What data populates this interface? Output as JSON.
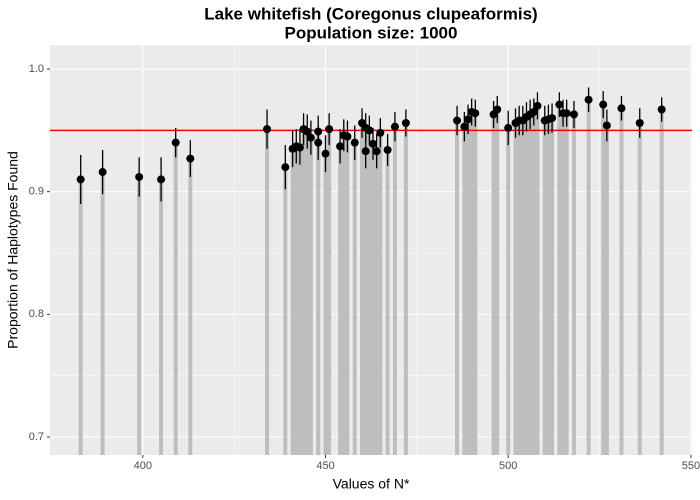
{
  "chart_data": {
    "type": "errorbar-point",
    "title": "Lake whitefish (Coregonus clupeaformis)",
    "subtitle": "Population size: 1000",
    "x_label": "Values of N*",
    "y_label": "Proportion of Haplotypes Found",
    "x": [
      383,
      389,
      399,
      405,
      409,
      413,
      434,
      439,
      441,
      442,
      443,
      444,
      445,
      446,
      448,
      448,
      450,
      451,
      454,
      455,
      456,
      458,
      460,
      461,
      461,
      462,
      463,
      464,
      465,
      467,
      469,
      472,
      486,
      488,
      489,
      490,
      491,
      496,
      497,
      500,
      502,
      503,
      504,
      505,
      506,
      507,
      508,
      510,
      511,
      512,
      514,
      515,
      516,
      518,
      522,
      526,
      527,
      531,
      536,
      542
    ],
    "values": [
      0.91,
      0.916,
      0.912,
      0.91,
      0.94,
      0.927,
      0.951,
      0.92,
      0.935,
      0.937,
      0.936,
      0.951,
      0.949,
      0.944,
      0.949,
      0.94,
      0.931,
      0.951,
      0.937,
      0.946,
      0.945,
      0.94,
      0.956,
      0.952,
      0.933,
      0.95,
      0.939,
      0.933,
      0.948,
      0.934,
      0.953,
      0.956,
      0.958,
      0.953,
      0.959,
      0.965,
      0.964,
      0.963,
      0.967,
      0.952,
      0.956,
      0.958,
      0.958,
      0.961,
      0.963,
      0.965,
      0.97,
      0.958,
      0.959,
      0.96,
      0.971,
      0.964,
      0.964,
      0.963,
      0.975,
      0.971,
      0.954,
      0.968,
      0.956,
      0.967
    ],
    "errors": [
      0.02,
      0.018,
      0.016,
      0.018,
      0.012,
      0.015,
      0.016,
      0.018,
      0.015,
      0.014,
      0.014,
      0.013,
      0.014,
      0.014,
      0.013,
      0.014,
      0.015,
      0.013,
      0.014,
      0.013,
      0.013,
      0.014,
      0.012,
      0.012,
      0.014,
      0.012,
      0.013,
      0.014,
      0.012,
      0.013,
      0.012,
      0.011,
      0.012,
      0.012,
      0.012,
      0.011,
      0.011,
      0.011,
      0.011,
      0.014,
      0.012,
      0.012,
      0.012,
      0.012,
      0.012,
      0.011,
      0.011,
      0.012,
      0.012,
      0.012,
      0.01,
      0.011,
      0.011,
      0.011,
      0.01,
      0.011,
      0.013,
      0.01,
      0.012,
      0.01
    ],
    "bar_color": "#bebebe",
    "point_color": "#000000",
    "hline": 0.95,
    "hline_color": "#ff0000",
    "xlim": [
      374.6,
      550.3
    ],
    "ylim": [
      0.6853,
      1.0196
    ],
    "xticks": [
      400,
      450,
      500,
      550
    ],
    "yticks": [
      0.7,
      0.8,
      0.9,
      {
        "value": 1.0,
        "label": "1.0"
      }
    ],
    "x_minor_grid": [
      425,
      475,
      525
    ],
    "y_minor_grid": [
      0.75,
      0.85,
      0.95
    ],
    "grid": true
  }
}
